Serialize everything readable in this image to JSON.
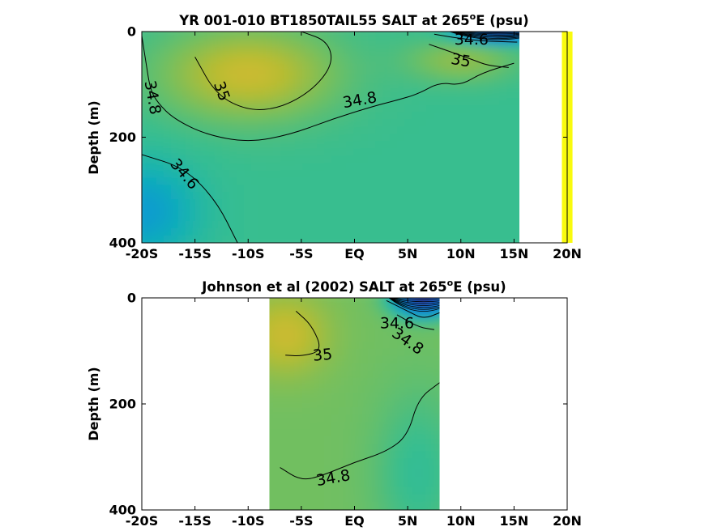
{
  "chart_data": [
    {
      "type": "heatmap",
      "variant": "depth-latitude contour section",
      "title_main": "YR 001-010 BT1850TAIL55 SALT at 265",
      "title_sup": "o",
      "title_tail": "E (psu)",
      "ylabel": "Depth (m)",
      "x_ticks": [
        -20,
        -15,
        -10,
        -5,
        0,
        5,
        10,
        15,
        20
      ],
      "x_tick_labels": [
        "-20S",
        "-15S",
        "-10S",
        "-5S",
        "EQ",
        "5N",
        "10N",
        "15N",
        "20N"
      ],
      "y_ticks": [
        0,
        200,
        400
      ],
      "y_tick_labels": [
        "0",
        "200",
        "400"
      ],
      "xlim": [
        -20,
        20
      ],
      "ylim": [
        400,
        0
      ],
      "data_extent_lat": [
        -20,
        15.5
      ],
      "colormap": "parula",
      "fields": [
        {
          "kind": "base",
          "value": 34.75
        },
        {
          "kind": "blob",
          "lat": -10,
          "depth": 80,
          "rlat": 8,
          "rdepth": 85,
          "amp": 0.35
        },
        {
          "kind": "blob",
          "lat": -20,
          "depth": 340,
          "rlat": 5,
          "rdepth": 90,
          "amp": -0.3
        },
        {
          "kind": "blob",
          "lat": 10,
          "depth": 55,
          "rlat": 5,
          "rdepth": 40,
          "amp": 0.2
        },
        {
          "kind": "blob",
          "lat": 13.5,
          "depth": 0,
          "rlat": 3.5,
          "rdepth": 18,
          "amp": -1.1
        }
      ],
      "contours": [
        {
          "label": "34.8",
          "points": [
            [
              -20,
              8
            ],
            [
              -19.6,
              60
            ],
            [
              -19.2,
              110
            ],
            [
              -18.5,
              135
            ],
            [
              -17,
              165
            ],
            [
              -14,
              195
            ],
            [
              -10,
              210
            ],
            [
              -6,
              195
            ],
            [
              -2,
              165
            ],
            [
              2,
              140
            ],
            [
              4,
              130
            ],
            [
              6,
              118
            ],
            [
              8,
              96
            ],
            [
              10,
              102
            ],
            [
              12,
              78
            ],
            [
              15,
              60
            ]
          ]
        },
        {
          "label": "35",
          "points": [
            [
              -15,
              48
            ],
            [
              -13,
              120
            ],
            [
              -10,
              150
            ],
            [
              -7,
              145
            ],
            [
              -4,
              112
            ],
            [
              -2,
              62
            ],
            [
              -2.5,
              18
            ],
            [
              -5,
              0
            ]
          ]
        },
        {
          "label": "34.6",
          "points": [
            [
              -20,
              233
            ],
            [
              -16,
              258
            ],
            [
              -13,
              320
            ],
            [
              -11,
              400
            ]
          ]
        },
        {
          "label": "35",
          "points": [
            [
              7,
              24
            ],
            [
              9,
              38
            ],
            [
              11.2,
              54
            ],
            [
              12.5,
              64
            ],
            [
              14.5,
              68
            ]
          ]
        },
        {
          "label": "34.6",
          "points": [
            [
              7.5,
              5
            ],
            [
              9.5,
              12
            ],
            [
              12,
              18
            ],
            [
              15.3,
              20
            ]
          ]
        }
      ],
      "contour_labels": [
        {
          "text": "34.8",
          "lat": -19,
          "depth": 125,
          "rotate": 80
        },
        {
          "text": "35",
          "lat": -12.5,
          "depth": 113,
          "rotate": 70
        },
        {
          "text": "34.8",
          "lat": 0.5,
          "depth": 130,
          "rotate": -10
        },
        {
          "text": "34.6",
          "lat": -16,
          "depth": 270,
          "rotate": 50
        },
        {
          "text": "35",
          "lat": 10,
          "depth": 55,
          "rotate": 10
        },
        {
          "text": "34.6",
          "lat": 11,
          "depth": 15,
          "rotate": 0
        }
      ],
      "stripe": {
        "lat": [
          19.5,
          20.5
        ],
        "depth": [
          0,
          400
        ],
        "color": "#f9fb0e"
      }
    },
    {
      "type": "heatmap",
      "variant": "depth-latitude contour section",
      "title_main": "Johnson et al (2002) SALT at 265",
      "title_sup": "o",
      "title_tail": "E (psu)",
      "ylabel": "Depth (m)",
      "x_ticks": [
        -20,
        -15,
        -10,
        -5,
        0,
        5,
        10,
        15,
        20
      ],
      "x_tick_labels": [
        "-20S",
        "-15S",
        "-10S",
        "-5S",
        "EQ",
        "5N",
        "10N",
        "15N",
        "20N"
      ],
      "y_ticks": [
        0,
        200,
        400
      ],
      "y_tick_labels": [
        "0",
        "200",
        "400"
      ],
      "xlim": [
        -20,
        20
      ],
      "ylim": [
        400,
        0
      ],
      "data_extent_lat": [
        -8,
        8
      ],
      "colormap": "parula",
      "fields": [
        {
          "kind": "base",
          "value": 34.88
        },
        {
          "kind": "blob",
          "lat": -6.5,
          "depth": 70,
          "rlat": 4,
          "rdepth": 75,
          "amp": 0.22
        },
        {
          "kind": "blob",
          "lat": 6,
          "depth": 330,
          "rlat": 4,
          "rdepth": 150,
          "amp": -0.15
        },
        {
          "kind": "blob",
          "lat": 6.5,
          "depth": 0,
          "rlat": 2.5,
          "rdepth": 30,
          "amp": -1.3
        }
      ],
      "contours": [
        {
          "label": "35",
          "points": [
            [
              -5.5,
              25
            ],
            [
              -4,
              52
            ],
            [
              -3,
              100
            ],
            [
              -5,
              110
            ],
            [
              -6.5,
              108
            ]
          ]
        },
        {
          "label": "34.8",
          "points": [
            [
              -7,
              320
            ],
            [
              -5,
              345
            ],
            [
              -3,
              335
            ],
            [
              0,
              310
            ],
            [
              3,
              290
            ],
            [
              5,
              260
            ],
            [
              6,
              190
            ],
            [
              8,
              160
            ]
          ]
        },
        {
          "label": "34.6",
          "points": [
            [
              3,
              5
            ],
            [
              5,
              25
            ],
            [
              6.5,
              40
            ],
            [
              8,
              28
            ]
          ]
        },
        {
          "label": "34.8",
          "points": [
            [
              4,
              32
            ],
            [
              6,
              55
            ],
            [
              7.5,
              60
            ]
          ]
        }
      ],
      "contour_labels": [
        {
          "text": "35",
          "lat": -3,
          "depth": 108,
          "rotate": -5
        },
        {
          "text": "34.8",
          "lat": -2,
          "depth": 340,
          "rotate": -10
        },
        {
          "text": "34.6",
          "lat": 4,
          "depth": 48,
          "rotate": 0
        },
        {
          "text": "34.8",
          "lat": 5,
          "depth": 82,
          "rotate": 35
        }
      ]
    }
  ]
}
